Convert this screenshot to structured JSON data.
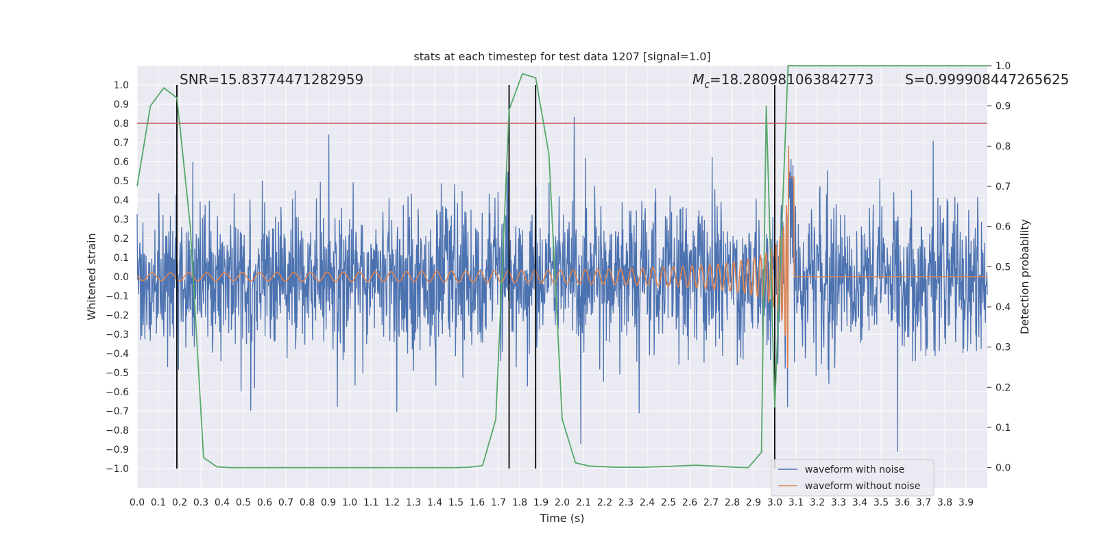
{
  "chart_data": {
    "type": "line",
    "title": "stats at each timestep for test data 1207 [signal=1.0]",
    "xlabel": "Time (s)",
    "ylabel": "Whitened strain",
    "y2label": "Detection probability",
    "xlim": [
      0.0,
      4.0
    ],
    "ylim": [
      -1.1,
      1.1
    ],
    "y2lim": [
      -0.05,
      1.0
    ],
    "x_ticks": [
      "0.0",
      "0.1",
      "0.2",
      "0.3",
      "0.4",
      "0.5",
      "0.6",
      "0.7",
      "0.8",
      "0.9",
      "1.0",
      "1.1",
      "1.2",
      "1.3",
      "1.4",
      "1.5",
      "1.6",
      "1.7",
      "1.8",
      "1.9",
      "2.0",
      "2.1",
      "2.2",
      "2.3",
      "2.4",
      "2.5",
      "2.6",
      "2.7",
      "2.8",
      "2.9",
      "3.0",
      "3.1",
      "3.2",
      "3.3",
      "3.4",
      "3.5",
      "3.6",
      "3.7",
      "3.8",
      "3.9"
    ],
    "y_ticks": [
      "1.0",
      "0.9",
      "0.8",
      "0.7",
      "0.6",
      "0.5",
      "0.4",
      "0.3",
      "0.2",
      "0.1",
      "0.0",
      "−0.1",
      "−0.2",
      "−0.3",
      "−0.4",
      "−0.5",
      "−0.6",
      "−0.7",
      "−0.8",
      "−0.9",
      "−1.0"
    ],
    "y2_ticks": [
      "1.0",
      "0.9",
      "0.8",
      "0.7",
      "0.6",
      "0.5",
      "0.4",
      "0.3",
      "0.2",
      "0.1",
      "0.0"
    ],
    "threshold": 0.8,
    "vlines": [
      0.187,
      1.75,
      1.875,
      3.0
    ],
    "vline_range": [
      -1.0,
      1.0
    ],
    "detection_probability": {
      "x": [
        0.0,
        0.0625,
        0.125,
        0.1875,
        0.25,
        0.3125,
        0.375,
        0.4375,
        0.5,
        0.75,
        1.0,
        1.25,
        1.5,
        1.5625,
        1.625,
        1.6875,
        1.75,
        1.8125,
        1.875,
        1.9375,
        2.0,
        2.0625,
        2.125,
        2.25,
        2.375,
        2.5,
        2.625,
        2.75,
        2.8125,
        2.875,
        2.9375,
        2.96,
        3.0,
        3.0625,
        3.125,
        3.5,
        4.0
      ],
      "y": [
        0.7,
        0.9,
        0.945,
        0.92,
        0.6,
        0.025,
        0.002,
        0.0,
        0.0,
        0.0,
        0.0,
        0.0,
        0.0,
        0.001,
        0.005,
        0.12,
        0.89,
        0.98,
        0.97,
        0.78,
        0.12,
        0.012,
        0.004,
        0.001,
        0.001,
        0.003,
        0.006,
        0.003,
        0.001,
        0.0,
        0.038,
        0.9,
        0.15,
        1.0,
        1.0,
        1.0,
        1.0
      ]
    },
    "annotations": {
      "snr": "SNR=15.83774471282959",
      "mc_symbol": "M",
      "mc_sub": "c",
      "mc_value": "=18.280981063842773",
      "s": "S=0.999908447265625"
    },
    "series": [
      {
        "name": "waveform with noise",
        "color": "#4c72b0",
        "description": "noise, amplitude ~0.4, range about -0.85 to 0.99"
      },
      {
        "name": "waveform without noise",
        "color": "#dd8452",
        "description": "chirp from 0 to ~3.07 s, amplitude growing from 0.02 to ~0.7"
      }
    ],
    "colors": {
      "noise": "#4c72b0",
      "clean": "#dd8452",
      "prob": "#55a868",
      "threshold": "#c44e52",
      "vline": "#000000",
      "background": "#eaeaf2",
      "grid": "#ffffff"
    }
  }
}
